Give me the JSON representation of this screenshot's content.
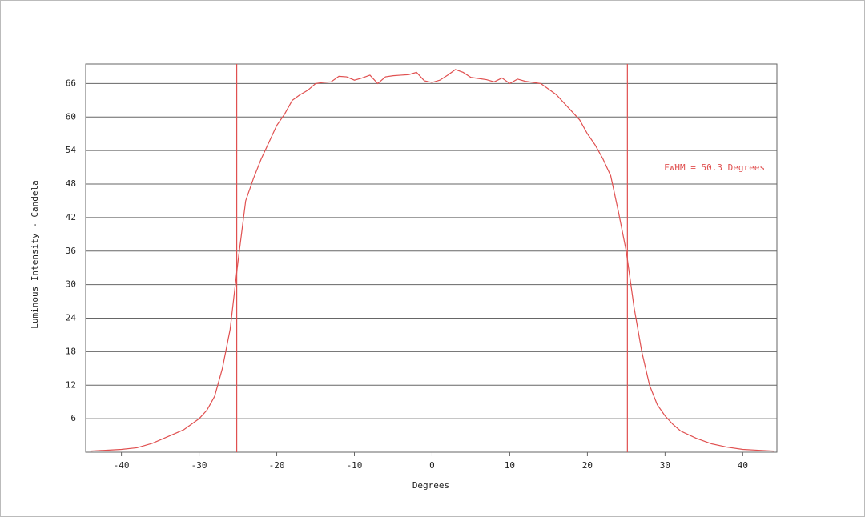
{
  "chart_data": {
    "type": "line",
    "xlabel": "Degrees",
    "ylabel": "Luminous Intensity - Candela",
    "annotation": "FWHM = 50.3 Degrees",
    "x": [
      -44,
      -40,
      -38,
      -36,
      -34,
      -32,
      -30,
      -29,
      -28,
      -27,
      -26,
      -25,
      -24,
      -23,
      -22,
      -21,
      -20,
      -19,
      -18,
      -17,
      -16,
      -15,
      -14,
      -13,
      -12,
      -11,
      -10,
      -9,
      -8,
      -7,
      -6,
      -5,
      -4,
      -3,
      -2,
      -1,
      0,
      1,
      2,
      3,
      4,
      5,
      6,
      7,
      8,
      9,
      10,
      11,
      12,
      13,
      14,
      15,
      16,
      17,
      18,
      19,
      20,
      21,
      22,
      23,
      24,
      25,
      26,
      27,
      28,
      29,
      30,
      31,
      32,
      34,
      36,
      38,
      40,
      42,
      44
    ],
    "series": [
      {
        "color": "#e05050",
        "values": [
          0.2,
          0.5,
          0.8,
          1.6,
          2.8,
          4,
          6,
          7.5,
          10,
          15,
          22,
          34,
          45,
          49,
          52.5,
          55.5,
          58.5,
          60.5,
          63,
          64,
          64.8,
          66,
          66.2,
          66.3,
          67.3,
          67.2,
          66.6,
          67,
          67.5,
          66,
          67.2,
          67.4,
          67.5,
          67.6,
          68,
          66.5,
          66.2,
          66.6,
          67.5,
          68.5,
          68,
          67.1,
          66.9,
          66.7,
          66.3,
          67,
          66,
          66.8,
          66.4,
          66.2,
          66,
          65,
          64,
          62.5,
          61,
          59.5,
          57,
          55,
          52.5,
          49.5,
          43,
          36,
          26,
          18,
          12,
          8.5,
          6.5,
          5,
          3.8,
          2.5,
          1.5,
          0.9,
          0.5,
          0.35,
          0.2
        ]
      }
    ],
    "vlines": [
      -25.15,
      25.15
    ],
    "vline_color": "#e05050",
    "xlim": [
      -44.6,
      44.4
    ],
    "ylim": [
      0,
      69.5
    ],
    "xticks": [
      -40,
      -30,
      -20,
      -10,
      0,
      10,
      20,
      30,
      40
    ],
    "yticks": [
      6,
      12,
      18,
      24,
      30,
      36,
      42,
      48,
      54,
      60,
      66
    ],
    "grid": true
  }
}
